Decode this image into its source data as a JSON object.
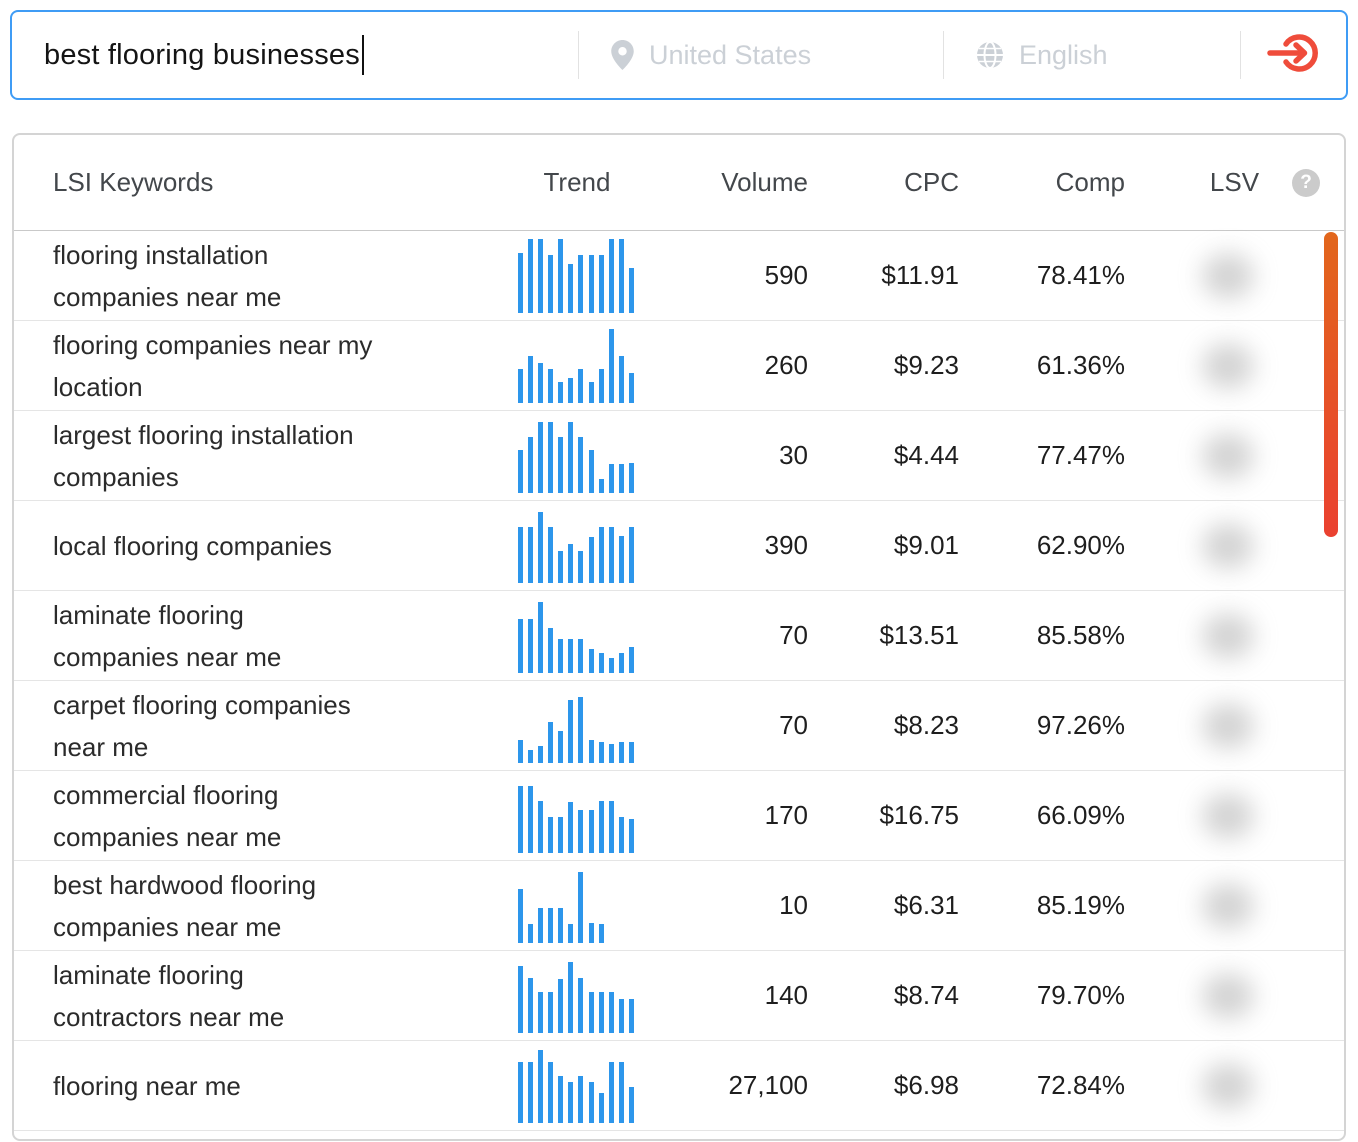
{
  "search": {
    "query": "best flooring businesses",
    "location_placeholder": "United States",
    "language_placeholder": "English"
  },
  "icons": {
    "location": "location-pin-icon",
    "language": "globe-icon",
    "submit": "arrow-enter-icon",
    "help": "question-mark-icon"
  },
  "table": {
    "headers": {
      "keywords": "LSI Keywords",
      "trend": "Trend",
      "volume": "Volume",
      "cpc": "CPC",
      "comp": "Comp",
      "lsv": "LSV"
    },
    "help_icon_label": "?",
    "rows": [
      {
        "keyword": "flooring installation\ncompanies near me",
        "trend": [
          80,
          100,
          100,
          78,
          100,
          65,
          78,
          78,
          78,
          100,
          100,
          60
        ],
        "volume": "590",
        "cpc": "$11.91",
        "comp": "78.41%"
      },
      {
        "keyword": "flooring companies near my\nlocation",
        "trend": [
          45,
          63,
          53,
          45,
          28,
          33,
          45,
          28,
          45,
          100,
          63,
          40
        ],
        "volume": "260",
        "cpc": "$9.23",
        "comp": "61.36%"
      },
      {
        "keyword": "largest flooring installation\ncompanies",
        "trend": [
          58,
          75,
          95,
          95,
          75,
          95,
          75,
          57,
          18,
          38,
          38,
          40
        ],
        "volume": "30",
        "cpc": "$4.44",
        "comp": "77.47%"
      },
      {
        "keyword": "local flooring companies",
        "trend": [
          75,
          75,
          95,
          75,
          42,
          52,
          42,
          62,
          75,
          75,
          63,
          75
        ],
        "volume": "390",
        "cpc": "$9.01",
        "comp": "62.90%"
      },
      {
        "keyword": "laminate flooring\ncompanies near me",
        "trend": [
          72,
          72,
          95,
          60,
          45,
          45,
          45,
          32,
          27,
          20,
          27,
          35
        ],
        "volume": "70",
        "cpc": "$13.51",
        "comp": "85.58%"
      },
      {
        "keyword": "carpet flooring companies\nnear me",
        "trend": [
          30,
          17,
          22,
          55,
          42,
          85,
          88,
          30,
          28,
          25,
          28,
          28
        ],
        "volume": "70",
        "cpc": "$8.23",
        "comp": "97.26%"
      },
      {
        "keyword": "commercial flooring\ncompanies near me",
        "trend": [
          90,
          90,
          70,
          48,
          48,
          68,
          57,
          57,
          70,
          70,
          48,
          45
        ],
        "volume": "170",
        "cpc": "$16.75",
        "comp": "66.09%"
      },
      {
        "keyword": "best hardwood flooring\ncompanies near me",
        "trend": [
          72,
          25,
          47,
          47,
          47,
          25,
          95,
          27,
          25,
          0,
          0,
          0
        ],
        "volume": "10",
        "cpc": "$6.31",
        "comp": "85.19%"
      },
      {
        "keyword": "laminate flooring\ncontractors near me",
        "trend": [
          90,
          73,
          55,
          55,
          72,
          95,
          73,
          55,
          55,
          55,
          45,
          45
        ],
        "volume": "140",
        "cpc": "$8.74",
        "comp": "79.70%"
      },
      {
        "keyword": "flooring near me",
        "trend": [
          82,
          82,
          98,
          82,
          63,
          55,
          63,
          55,
          40,
          82,
          82,
          48
        ],
        "volume": "27,100",
        "cpc": "$6.98",
        "comp": "72.84%"
      }
    ]
  },
  "colors": {
    "accent_blue": "#2d96eb",
    "search_border": "#3f9cf5",
    "submit_red": "#ef4c3b",
    "scrollbar_top": "#e2661c",
    "scrollbar_bottom": "#ea4130",
    "placeholder_gray": "#cbd0d6"
  }
}
